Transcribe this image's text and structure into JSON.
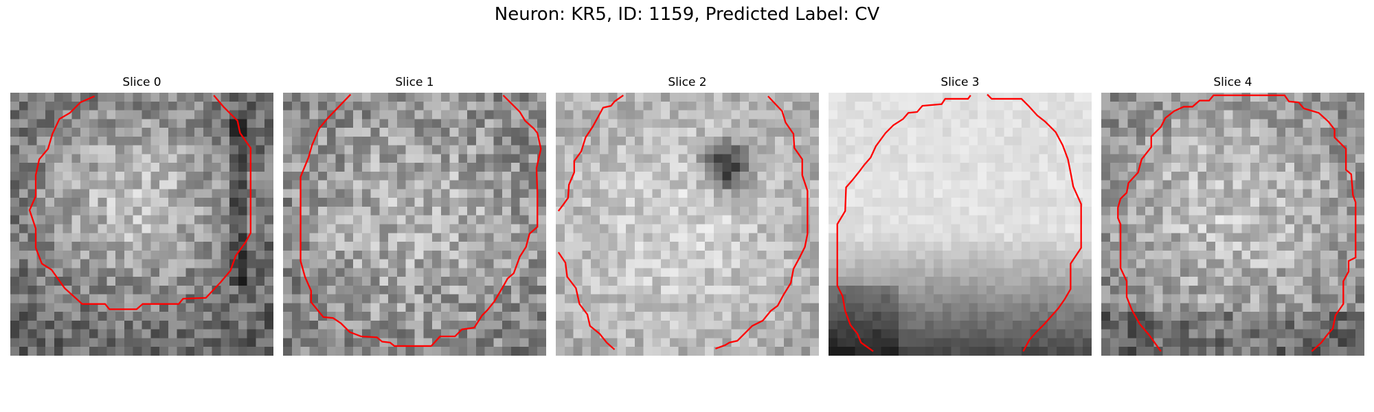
{
  "figure": {
    "title": "Neuron: KR5, ID: 1159, Predicted Label: CV"
  },
  "colors": {
    "contour": "#ff0000",
    "background": "#ffffff"
  },
  "slices": [
    {
      "label": "Slice 0"
    },
    {
      "label": "Slice 1"
    },
    {
      "label": "Slice 2"
    },
    {
      "label": "Slice 3"
    },
    {
      "label": "Slice 4"
    }
  ]
}
